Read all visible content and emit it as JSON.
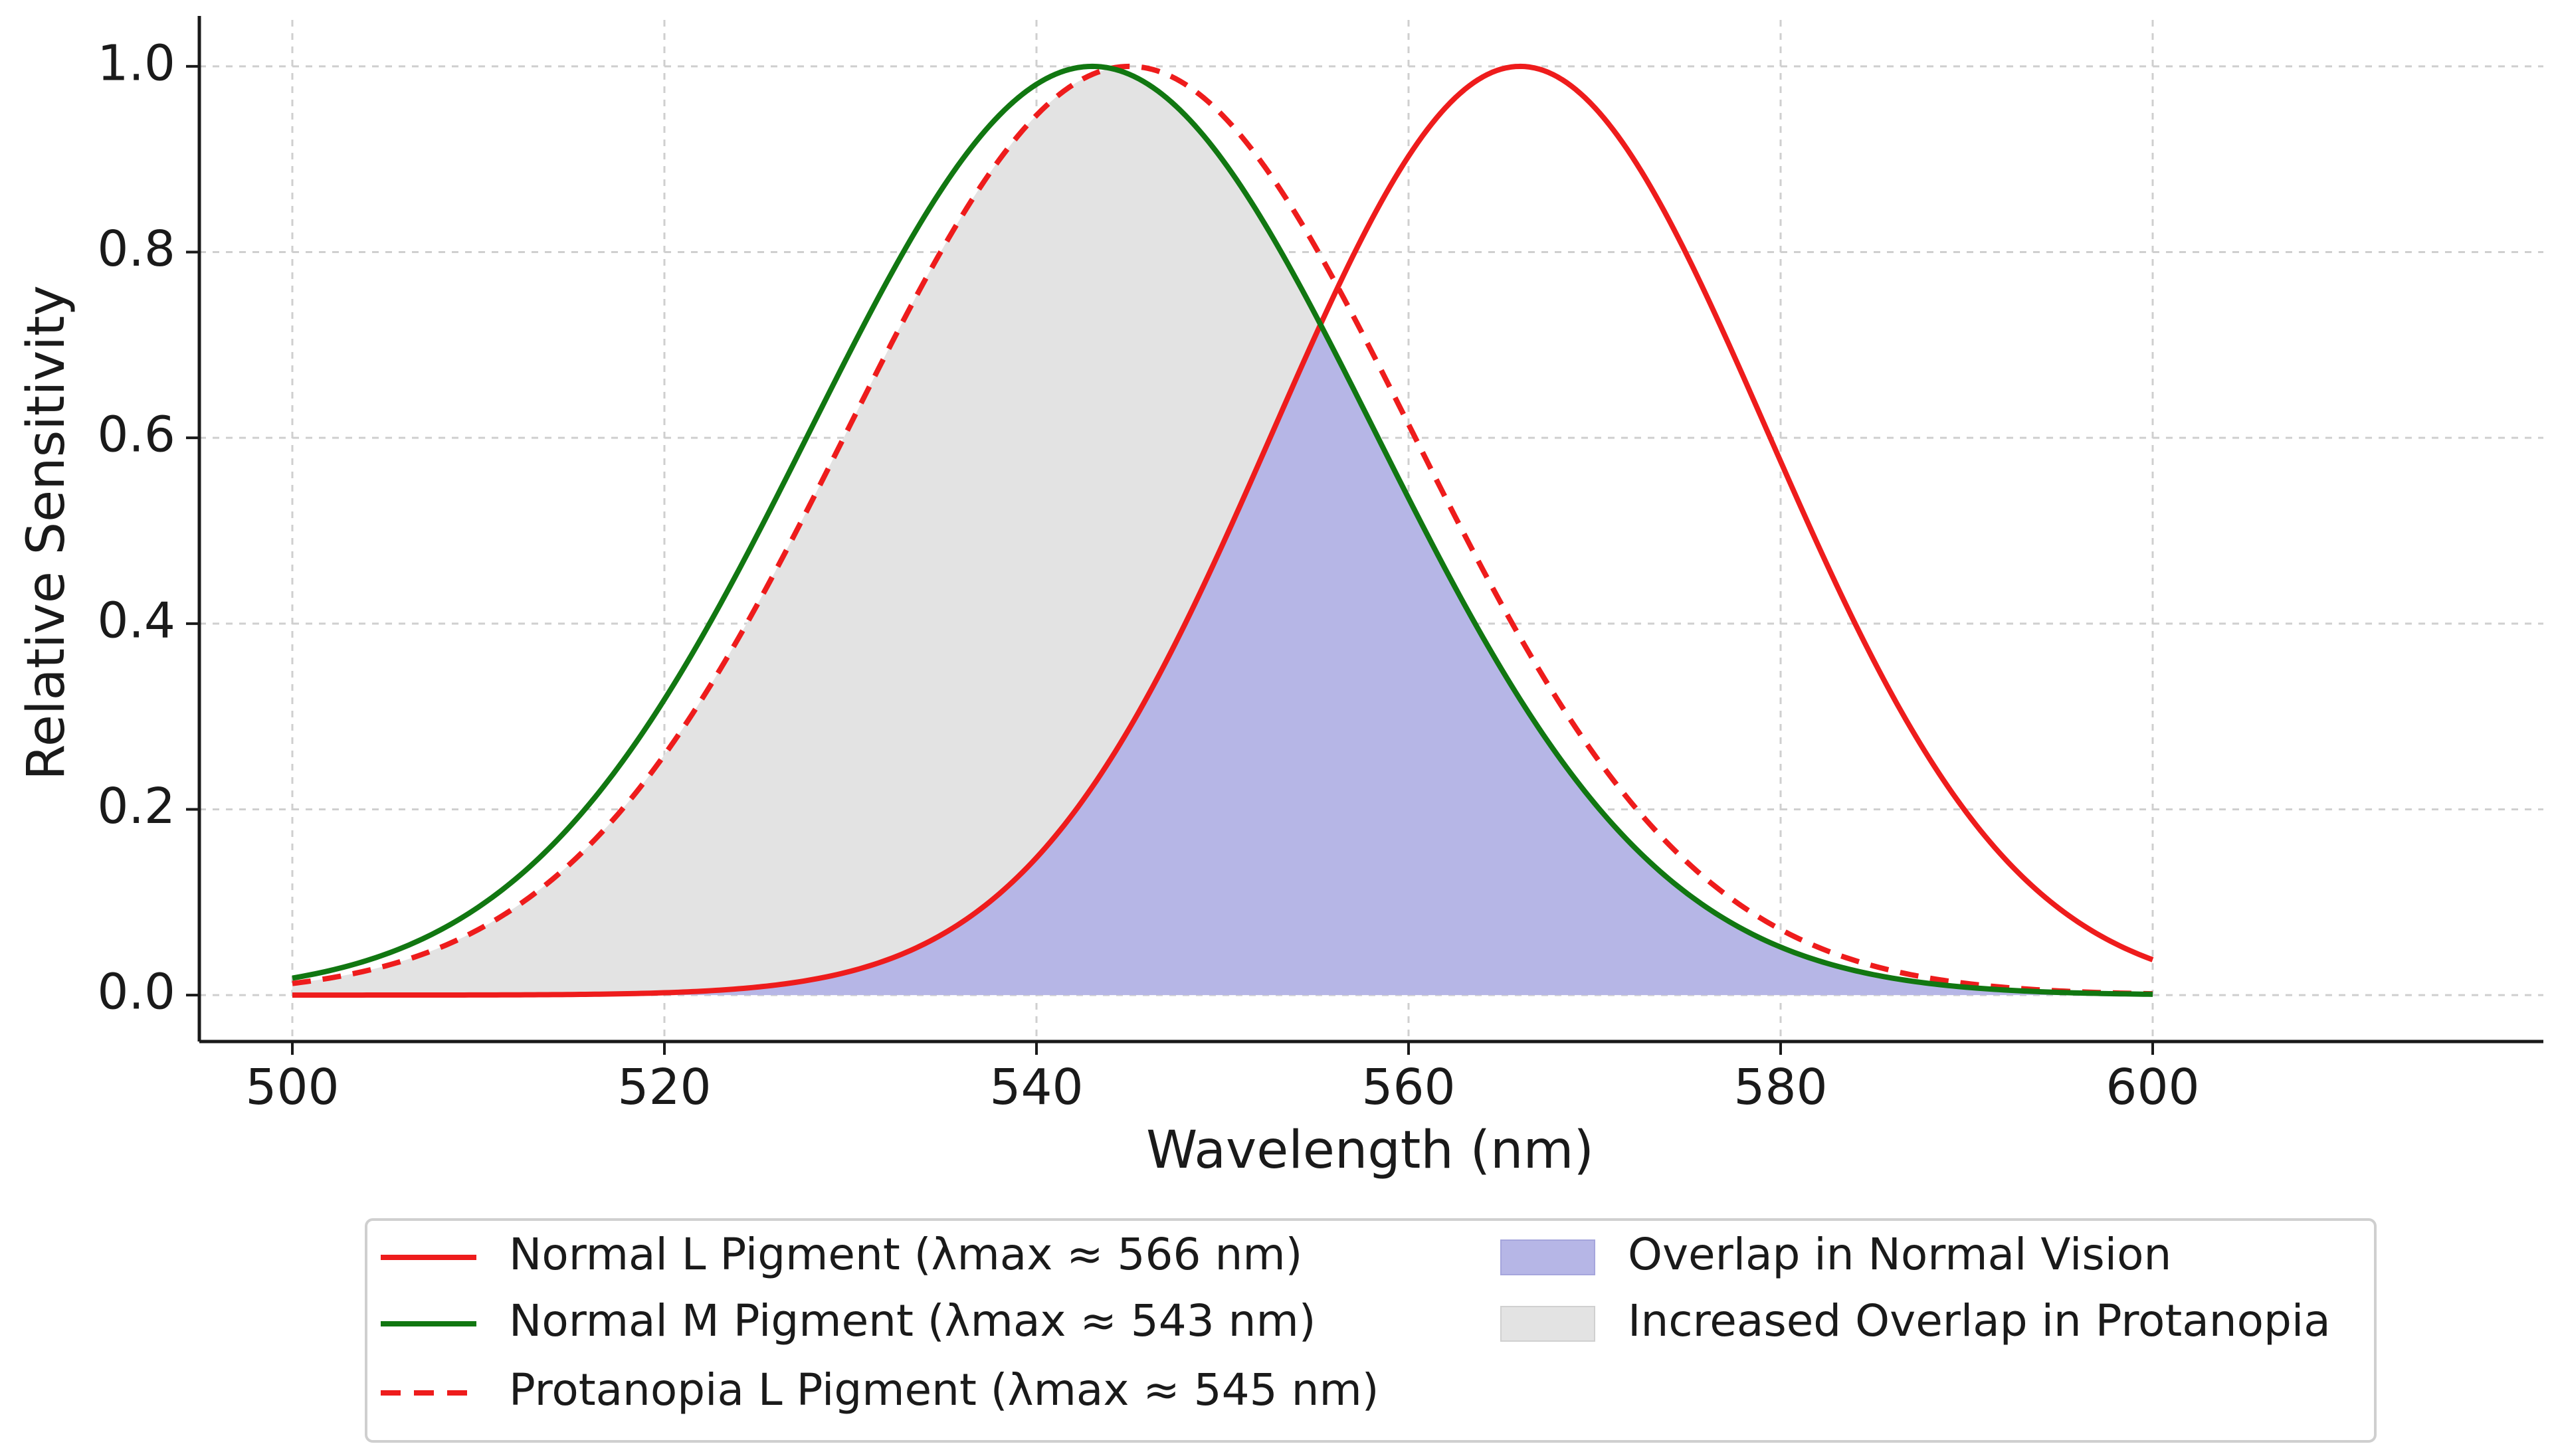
{
  "chart_data": {
    "type": "line",
    "title": "",
    "xlabel": "Wavelength (nm)",
    "ylabel": "Relative Sensitivity",
    "xlim": [
      495,
      621
    ],
    "ylim": [
      -0.05,
      1.05
    ],
    "x_ticks": [
      500,
      520,
      540,
      560,
      580,
      600
    ],
    "x_tick_labels": [
      "500",
      "520",
      "540",
      "560",
      "580",
      "600"
    ],
    "y_ticks": [
      0.0,
      0.2,
      0.4,
      0.6,
      0.8,
      1.0
    ],
    "y_tick_labels": [
      "0.0",
      "0.2",
      "0.4",
      "0.6",
      "0.8",
      "1.0"
    ],
    "grid": true,
    "x_range": [
      500,
      600
    ],
    "curve_model": "gaussian",
    "series": [
      {
        "name": "Normal L Pigment (λmax ≈ 566 nm)",
        "peak": 566,
        "sigma": 13.3,
        "color": "#ee1c1c",
        "dash": "solid"
      },
      {
        "name": "Normal M Pigment (λmax ≈ 543 nm)",
        "peak": 543,
        "sigma": 15.2,
        "color": "#117711",
        "dash": "solid"
      },
      {
        "name": "Protanopia L Pigment (λmax ≈ 545 nm)",
        "peak": 545,
        "sigma": 15.2,
        "color": "#ee1c1c",
        "dash": "dashed"
      }
    ],
    "fills": [
      {
        "name": "Overlap in Normal Vision",
        "between": [
          "Normal L Pigment (λmax ≈ 566 nm)",
          "Normal M Pigment (λmax ≈ 543 nm)"
        ],
        "rule": "min",
        "color": "#b6b6e6"
      },
      {
        "name": "Increased Overlap in Protanopia",
        "between": [
          "Protanopia L Pigment (λmax ≈ 545 nm)",
          "Normal M Pigment (λmax ≈ 543 nm)"
        ],
        "rule": "min",
        "color": "#e3e3e3"
      }
    ],
    "legend": {
      "placement": "bottom-center",
      "columns": 2,
      "entries": [
        "Normal L Pigment (λmax ≈ 566 nm)",
        "Normal M Pigment (λmax ≈ 543 nm)",
        "Protanopia L Pigment (λmax ≈ 545 nm)",
        "Overlap in Normal Vision",
        "Increased Overlap in Protanopia"
      ]
    }
  }
}
